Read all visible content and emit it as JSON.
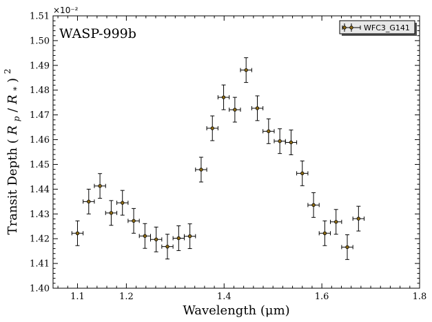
{
  "chart_data": {
    "type": "scatter",
    "planet_label": "WASP-999b",
    "xlabel": "Wavelength (μm)",
    "ylabel_prefix": "Transit Depth ",
    "ylabel_math": "(R_p/R_*)^2",
    "y_scale_label": "×10⁻²",
    "xlim": [
      1.05,
      1.8
    ],
    "ylim": [
      1.4,
      1.51
    ],
    "x_ticks": [
      1.1,
      1.2,
      1.4,
      1.6,
      1.8
    ],
    "x_tick_labels": [
      "1.1",
      "1.2",
      "1.4",
      "1.6",
      "1.8"
    ],
    "y_ticks": [
      1.4,
      1.41,
      1.42,
      1.43,
      1.44,
      1.45,
      1.46,
      1.47,
      1.48,
      1.49,
      1.5,
      1.51
    ],
    "y_tick_labels": [
      "1.40",
      "1.41",
      "1.42",
      "1.43",
      "1.44",
      "1.45",
      "1.46",
      "1.47",
      "1.48",
      "1.49",
      "1.50",
      "1.51"
    ],
    "grid": false,
    "legend_position": "top-right",
    "series": [
      {
        "name": "WFC3_G141",
        "color": "#8b6914",
        "x": [
          1.1,
          1.123,
          1.146,
          1.169,
          1.192,
          1.215,
          1.238,
          1.261,
          1.284,
          1.307,
          1.33,
          1.353,
          1.376,
          1.399,
          1.422,
          1.445,
          1.468,
          1.491,
          1.514,
          1.537,
          1.56,
          1.583,
          1.606,
          1.629,
          1.652,
          1.675
        ],
        "y": [
          1.4222,
          1.435,
          1.4413,
          1.4304,
          1.4345,
          1.4272,
          1.4211,
          1.4197,
          1.4168,
          1.4202,
          1.421,
          1.4479,
          1.4646,
          1.4771,
          1.4721,
          1.4881,
          1.4727,
          1.4634,
          1.4594,
          1.4589,
          1.4464,
          1.4336,
          1.4222,
          1.4268,
          1.4166,
          1.4281
        ],
        "yerr": [
          0.005,
          0.005,
          0.005,
          0.005,
          0.005,
          0.005,
          0.005,
          0.005,
          0.005,
          0.005,
          0.005,
          0.005,
          0.005,
          0.005,
          0.005,
          0.005,
          0.005,
          0.005,
          0.005,
          0.005,
          0.005,
          0.005,
          0.005,
          0.005,
          0.005,
          0.005
        ],
        "xerr": [
          0.0115,
          0.0115,
          0.0115,
          0.0115,
          0.0115,
          0.0115,
          0.0115,
          0.0115,
          0.0115,
          0.0115,
          0.0115,
          0.0115,
          0.0115,
          0.0115,
          0.0115,
          0.0115,
          0.0115,
          0.0115,
          0.0115,
          0.0115,
          0.0115,
          0.0115,
          0.0115,
          0.0115,
          0.0115,
          0.0115
        ]
      }
    ]
  }
}
